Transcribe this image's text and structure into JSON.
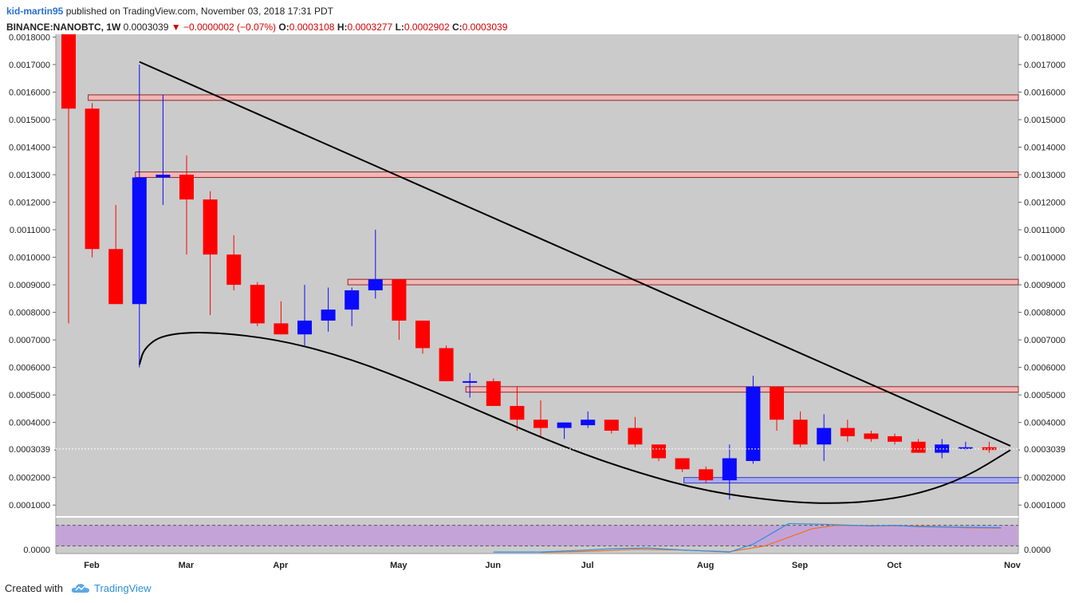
{
  "header": {
    "author": "kid-martin95",
    "published_text": " published on TradingView.com, November 03, 2018 17:31 PDT",
    "symbol": "BINANCE:NANOBTC, 1W",
    "last": "0.0003039",
    "change": "▼ −0.0000002 (−0.07%)",
    "o_label": "O:",
    "o_value": "0.0003108",
    "h_label": "H:",
    "h_value": "0.0003277",
    "l_label": "L:",
    "l_value": "0.0002902",
    "c_label": "C:",
    "c_value": "0.0003039"
  },
  "footer": {
    "created_with": "Created with",
    "brand": "TradingView"
  },
  "colors": {
    "up": "#0a0aff",
    "down": "#ff0000",
    "bg": "#cbcbcb",
    "zone_fill": "#f2b6b6",
    "zone_border": "#8a2a2a",
    "support_fill": "#a8acf2",
    "rsi_band": "#c4a4d8"
  },
  "chart_data": {
    "type": "candlestick",
    "interval": "1W",
    "ylim": [
      6e-05,
      0.00181
    ],
    "y_ticks": [
      "0.0001000",
      "0.0002000",
      "0.0003000",
      "0.0004000",
      "0.0005000",
      "0.0006000",
      "0.0007000",
      "0.0008000",
      "0.0009000",
      "0.0010000",
      "0.0011000",
      "0.0012000",
      "0.0013000",
      "0.0014000",
      "0.0015000",
      "0.0016000",
      "0.0017000",
      "0.0018000"
    ],
    "last_price_label": "0.0003039",
    "x_labels": [
      "Feb",
      "Mar",
      "Apr",
      "May",
      "Jun",
      "Jul",
      "Aug",
      "Sep",
      "Oct",
      "Nov"
    ],
    "candles": [
      {
        "o": 0.00181,
        "h": 0.00181,
        "l": 0.00076,
        "c": 0.00154
      },
      {
        "o": 0.00154,
        "h": 0.00156,
        "l": 0.001,
        "c": 0.00103
      },
      {
        "o": 0.00103,
        "h": 0.00119,
        "l": 0.00083,
        "c": 0.00083
      },
      {
        "o": 0.00083,
        "h": 0.0017,
        "l": 0.0006,
        "c": 0.00129
      },
      {
        "o": 0.00129,
        "h": 0.00159,
        "l": 0.00119,
        "c": 0.0013
      },
      {
        "o": 0.0013,
        "h": 0.00137,
        "l": 0.00101,
        "c": 0.00121
      },
      {
        "o": 0.00121,
        "h": 0.00124,
        "l": 0.00079,
        "c": 0.00101
      },
      {
        "o": 0.00101,
        "h": 0.00108,
        "l": 0.00088,
        "c": 0.0009
      },
      {
        "o": 0.0009,
        "h": 0.00091,
        "l": 0.00075,
        "c": 0.00076
      },
      {
        "o": 0.00076,
        "h": 0.00084,
        "l": 0.00072,
        "c": 0.00072
      },
      {
        "o": 0.00072,
        "h": 0.0009,
        "l": 0.00068,
        "c": 0.00077
      },
      {
        "o": 0.00077,
        "h": 0.00089,
        "l": 0.00073,
        "c": 0.00081
      },
      {
        "o": 0.00081,
        "h": 0.00089,
        "l": 0.00075,
        "c": 0.00088
      },
      {
        "o": 0.00088,
        "h": 0.0011,
        "l": 0.00085,
        "c": 0.00092
      },
      {
        "o": 0.00092,
        "h": 0.00092,
        "l": 0.0007,
        "c": 0.00077
      },
      {
        "o": 0.00077,
        "h": 0.00077,
        "l": 0.00065,
        "c": 0.00067
      },
      {
        "o": 0.00067,
        "h": 0.00068,
        "l": 0.00055,
        "c": 0.00055
      },
      {
        "o": 0.00055,
        "h": 0.00058,
        "l": 0.00049,
        "c": 0.00055
      },
      {
        "o": 0.00055,
        "h": 0.00056,
        "l": 0.00046,
        "c": 0.00046
      },
      {
        "o": 0.00046,
        "h": 0.00053,
        "l": 0.00037,
        "c": 0.00041
      },
      {
        "o": 0.00041,
        "h": 0.00048,
        "l": 0.00035,
        "c": 0.00038
      },
      {
        "o": 0.00038,
        "h": 0.0004,
        "l": 0.00034,
        "c": 0.0004
      },
      {
        "o": 0.00039,
        "h": 0.00044,
        "l": 0.00038,
        "c": 0.00041
      },
      {
        "o": 0.00041,
        "h": 0.00041,
        "l": 0.00036,
        "c": 0.00037
      },
      {
        "o": 0.00038,
        "h": 0.00042,
        "l": 0.00031,
        "c": 0.00032
      },
      {
        "o": 0.00032,
        "h": 0.00032,
        "l": 0.00026,
        "c": 0.00027
      },
      {
        "o": 0.00027,
        "h": 0.00027,
        "l": 0.00022,
        "c": 0.00023
      },
      {
        "o": 0.00023,
        "h": 0.00024,
        "l": 0.00018,
        "c": 0.00019
      },
      {
        "o": 0.00019,
        "h": 0.00032,
        "l": 0.00012,
        "c": 0.00027
      },
      {
        "o": 0.00026,
        "h": 0.00057,
        "l": 0.00025,
        "c": 0.00053
      },
      {
        "o": 0.00053,
        "h": 0.00053,
        "l": 0.00037,
        "c": 0.00041
      },
      {
        "o": 0.00041,
        "h": 0.00044,
        "l": 0.00031,
        "c": 0.00032
      },
      {
        "o": 0.00032,
        "h": 0.00043,
        "l": 0.00026,
        "c": 0.00038
      },
      {
        "o": 0.00038,
        "h": 0.00041,
        "l": 0.00033,
        "c": 0.00035
      },
      {
        "o": 0.00036,
        "h": 0.00037,
        "l": 0.00033,
        "c": 0.00034
      },
      {
        "o": 0.00035,
        "h": 0.00036,
        "l": 0.00032,
        "c": 0.00033
      },
      {
        "o": 0.00033,
        "h": 0.00034,
        "l": 0.00029,
        "c": 0.00029
      },
      {
        "o": 0.00029,
        "h": 0.00034,
        "l": 0.00027,
        "c": 0.00032
      },
      {
        "o": 0.00031,
        "h": 0.00033,
        "l": 0.0003,
        "c": 0.00031
      },
      {
        "o": 0.00031,
        "h": 0.00033,
        "l": 0.00029,
        "c": 0.0003
      }
    ],
    "resistance_zones": [
      {
        "low": 0.00157,
        "high": 0.00159,
        "from_candle": 1
      },
      {
        "low": 0.00129,
        "high": 0.00131,
        "from_candle": 3
      },
      {
        "low": 0.0009,
        "high": 0.00092,
        "from_candle": 12
      },
      {
        "low": 0.00051,
        "high": 0.00053,
        "from_candle": 17
      }
    ],
    "support_zones": [
      {
        "low": 0.00018,
        "high": 0.0002,
        "from_candle": 26
      }
    ],
    "trendline": {
      "points": [
        {
          "candle": 3,
          "price": 0.00171
        },
        {
          "candle": 39.9,
          "price": 0.000315
        }
      ]
    },
    "bowl_curve": [
      {
        "candle": 3.0,
        "price": 0.00061
      },
      {
        "candle": 3.2,
        "price": 0.00067
      },
      {
        "candle": 4.0,
        "price": 0.00072
      },
      {
        "candle": 6.0,
        "price": 0.00073
      },
      {
        "candle": 9.0,
        "price": 0.0007
      },
      {
        "candle": 12.0,
        "price": 0.00063
      },
      {
        "candle": 15.0,
        "price": 0.00053
      },
      {
        "candle": 18.0,
        "price": 0.00042
      },
      {
        "candle": 21.0,
        "price": 0.00031
      },
      {
        "candle": 24.0,
        "price": 0.00022
      },
      {
        "candle": 27.0,
        "price": 0.00015
      },
      {
        "candle": 30.0,
        "price": 0.000115
      },
      {
        "candle": 32.0,
        "price": 0.000105
      },
      {
        "candle": 34.0,
        "price": 0.000112
      },
      {
        "candle": 36.0,
        "price": 0.00014
      },
      {
        "candle": 38.0,
        "price": 0.0002
      },
      {
        "candle": 39.9,
        "price": 0.0003
      }
    ],
    "rsi": {
      "ylim": [
        0,
        100
      ],
      "upper_band": 80,
      "lower_band": 20,
      "y_tick": "0.0000",
      "blue": [
        {
          "candle": 18.0,
          "v": 2
        },
        {
          "candle": 20.0,
          "v": 2
        },
        {
          "candle": 22.0,
          "v": 8
        },
        {
          "candle": 23.0,
          "v": 12
        },
        {
          "candle": 24.5,
          "v": 14
        },
        {
          "candle": 26.0,
          "v": 8
        },
        {
          "candle": 28.0,
          "v": 2
        },
        {
          "candle": 29.0,
          "v": 25
        },
        {
          "candle": 30.0,
          "v": 65
        },
        {
          "candle": 30.5,
          "v": 85
        },
        {
          "candle": 32.0,
          "v": 83
        },
        {
          "candle": 34.0,
          "v": 78
        },
        {
          "candle": 35.0,
          "v": 80
        },
        {
          "candle": 36.0,
          "v": 76
        },
        {
          "candle": 38.0,
          "v": 74
        },
        {
          "candle": 39.5,
          "v": 73
        }
      ],
      "orange": [
        {
          "candle": 20.0,
          "v": 1
        },
        {
          "candle": 22.0,
          "v": 4
        },
        {
          "candle": 24.0,
          "v": 10
        },
        {
          "candle": 26.0,
          "v": 8
        },
        {
          "candle": 28.0,
          "v": 3
        },
        {
          "candle": 29.5,
          "v": 20
        },
        {
          "candle": 30.5,
          "v": 45
        },
        {
          "candle": 31.5,
          "v": 70
        },
        {
          "candle": 32.5,
          "v": 80
        },
        {
          "candle": 34.0,
          "v": 79
        },
        {
          "candle": 36.0,
          "v": 78
        },
        {
          "candle": 38.0,
          "v": 73
        },
        {
          "candle": 39.5,
          "v": 72
        }
      ]
    }
  }
}
